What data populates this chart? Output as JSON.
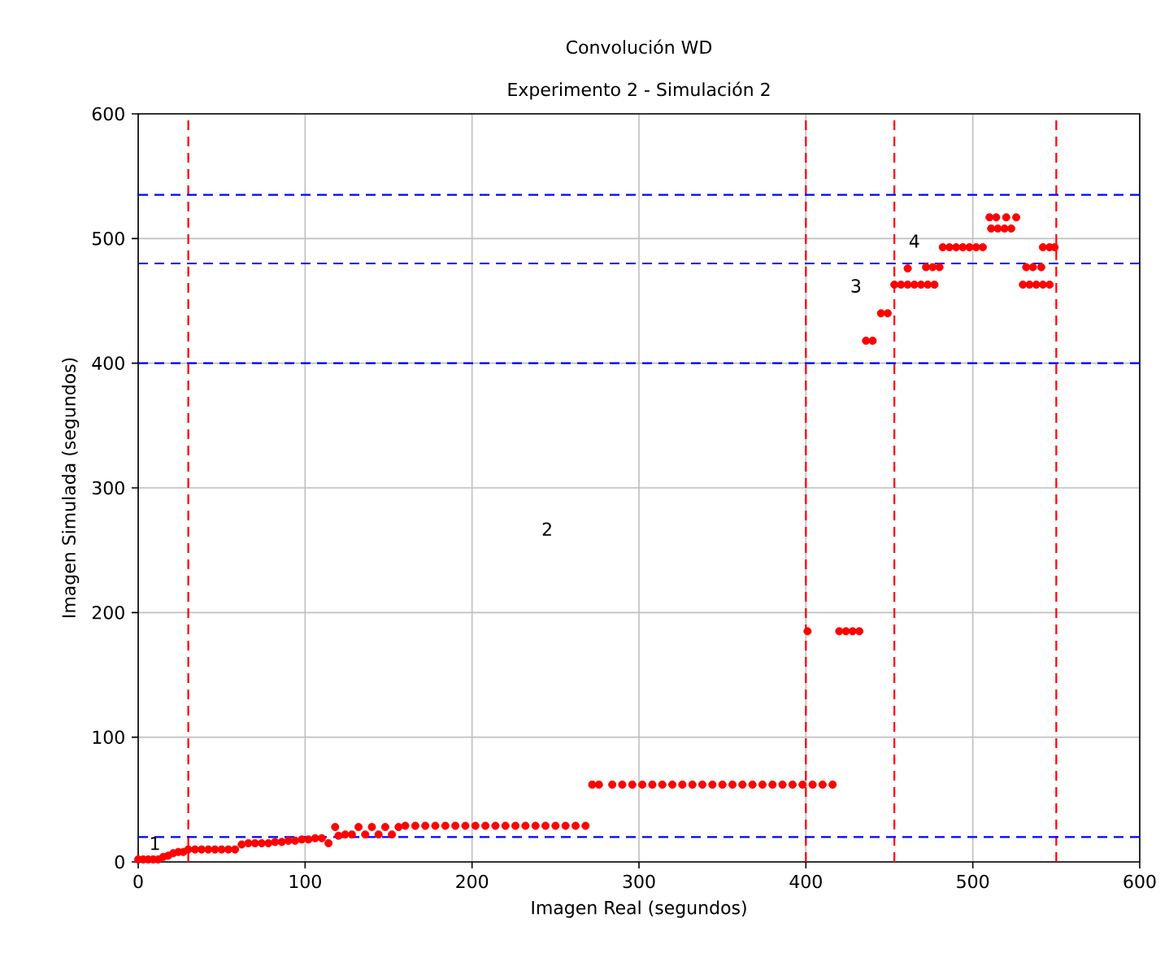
{
  "chart_data": {
    "type": "scatter",
    "title": "Convolución WD",
    "subtitle": "Experimento 2 - Simulación 2",
    "xlabel": "Imagen Real (segundos)",
    "ylabel": "Imagen Simulada (segundos)",
    "xlim": [
      0,
      600
    ],
    "ylim": [
      0,
      600
    ],
    "xticks": [
      0,
      100,
      200,
      300,
      400,
      500,
      600
    ],
    "yticks": [
      0,
      100,
      200,
      300,
      400,
      500,
      600
    ],
    "grid": true,
    "marker": "circle",
    "series": [
      {
        "color": "#ff0000",
        "x": [
          0,
          3,
          6,
          9,
          12,
          15,
          18,
          21,
          24,
          27,
          30,
          34,
          38,
          42,
          46,
          50,
          54,
          58,
          62,
          66,
          70,
          74,
          78,
          82,
          86,
          90,
          94,
          98,
          102,
          106,
          110,
          114,
          118,
          120,
          124,
          128,
          132,
          136,
          140,
          144,
          148,
          152,
          156,
          160,
          166,
          172,
          178,
          184,
          190,
          196,
          202,
          208,
          214,
          220,
          226,
          232,
          238,
          244,
          250,
          256,
          262,
          268,
          272,
          276,
          284,
          290,
          296,
          302,
          308,
          314,
          320,
          326,
          332,
          338,
          344,
          350,
          356,
          362,
          368,
          374,
          380,
          386,
          392,
          398,
          404,
          410,
          416,
          401,
          420,
          424,
          428,
          432,
          436,
          440,
          445,
          449,
          453,
          457,
          461,
          465,
          469,
          473,
          477,
          461,
          472,
          476,
          480,
          482,
          486,
          490,
          494,
          498,
          502,
          506,
          511,
          515,
          519,
          523,
          510,
          514,
          520,
          526,
          530,
          534,
          538,
          542,
          546,
          532,
          536,
          541,
          542,
          546,
          549
        ],
        "values": [
          2,
          2,
          2,
          2,
          2,
          4,
          5,
          7,
          8,
          8,
          10,
          10,
          10,
          10,
          10,
          10,
          10,
          10,
          14,
          15,
          15,
          15,
          15,
          16,
          16,
          17,
          17,
          18,
          18,
          19,
          19,
          15,
          28,
          21,
          22,
          22,
          28,
          22,
          28,
          22,
          28,
          22,
          28,
          29,
          29,
          29,
          29,
          29,
          29,
          29,
          29,
          29,
          29,
          29,
          29,
          29,
          29,
          29,
          29,
          29,
          29,
          29,
          62,
          62,
          62,
          62,
          62,
          62,
          62,
          62,
          62,
          62,
          62,
          62,
          62,
          62,
          62,
          62,
          62,
          62,
          62,
          62,
          62,
          62,
          62,
          62,
          62,
          185,
          185,
          185,
          185,
          185,
          418,
          418,
          440,
          440,
          463,
          463,
          463,
          463,
          463,
          463,
          463,
          476,
          477,
          477,
          477,
          493,
          493,
          493,
          493,
          493,
          493,
          493,
          508,
          508,
          508,
          508,
          517,
          517,
          517,
          517,
          463,
          463,
          463,
          463,
          463,
          477,
          477,
          477,
          493,
          493,
          493
        ]
      }
    ],
    "ref_lines": [
      {
        "axis": "x",
        "value": 30,
        "color": "#ff0000",
        "line_style": "dashed"
      },
      {
        "axis": "x",
        "value": 400,
        "color": "#ff0000",
        "line_style": "dashed"
      },
      {
        "axis": "x",
        "value": 453,
        "color": "#ff0000",
        "line_style": "dashed"
      },
      {
        "axis": "x",
        "value": 550,
        "color": "#ff0000",
        "line_style": "dashed"
      },
      {
        "axis": "y",
        "value": 20,
        "color": "#0000ff",
        "line_style": "dashed"
      },
      {
        "axis": "y",
        "value": 400,
        "color": "#0000ff",
        "line_style": "dashed"
      },
      {
        "axis": "y",
        "value": 480,
        "color": "#0000ff",
        "line_style": "dashed"
      },
      {
        "axis": "y",
        "value": 535,
        "color": "#0000ff",
        "line_style": "dashed"
      }
    ],
    "annotations": [
      "1",
      "2",
      "3",
      "4"
    ]
  }
}
